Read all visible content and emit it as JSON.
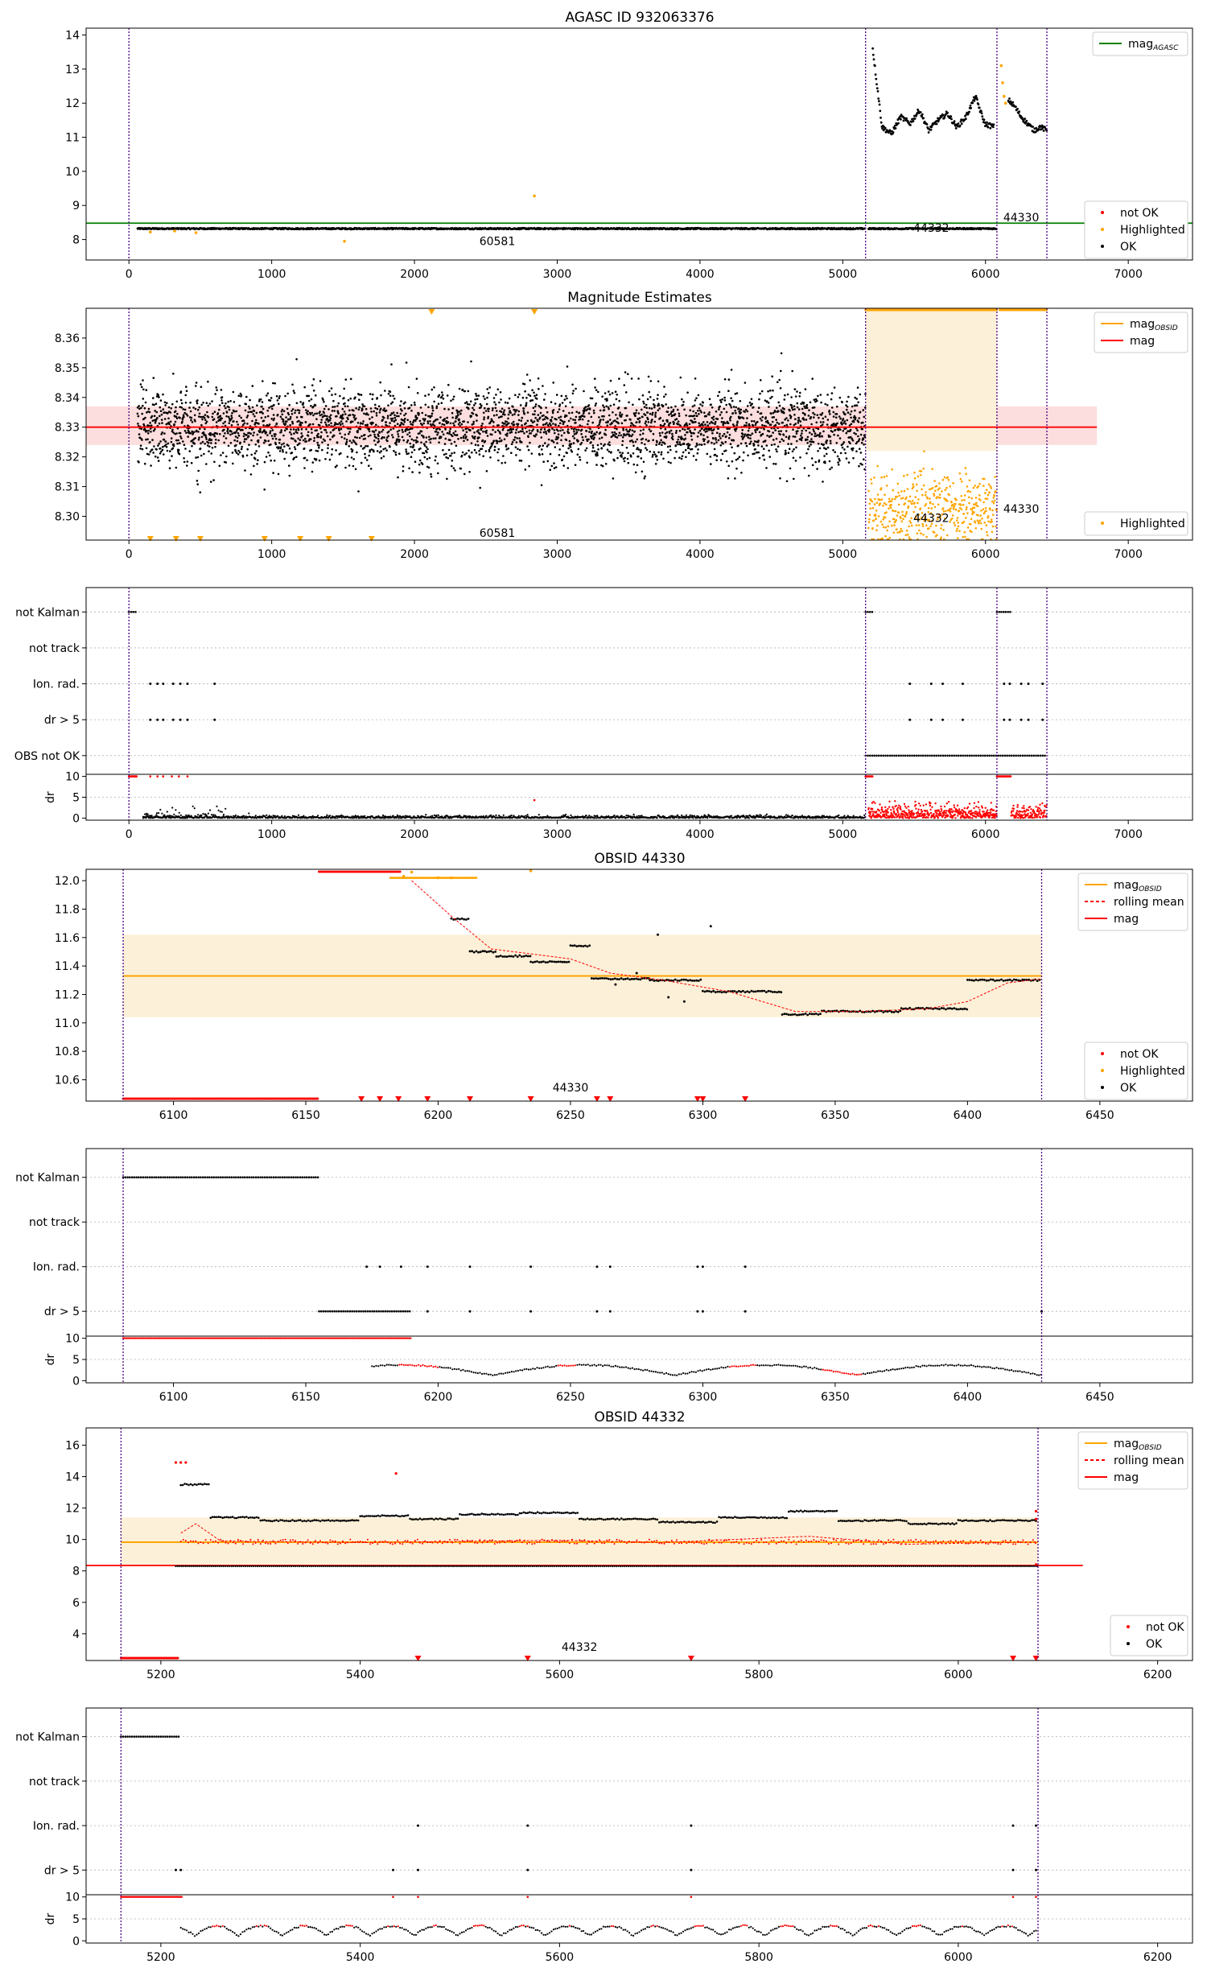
{
  "colors": {
    "ok": "#000000",
    "not_ok": "#ff0000",
    "highlighted": "#ffa500",
    "mag_agasc": "#008000",
    "mag_obsid": "#ffa500",
    "mag": "#ff0000",
    "vline": "#4b0082",
    "grid": "#b0b0b0",
    "band_orange": "#fdf0d8",
    "band_red": "#fbd0d0"
  },
  "chart_data": [
    {
      "type": "scatter",
      "title": "AGASC ID 932063376",
      "xlim": [
        -300,
        7450
      ],
      "ylim": [
        7.4,
        14.2
      ],
      "xticks": [
        0,
        1000,
        2000,
        3000,
        4000,
        5000,
        6000,
        7000
      ],
      "yticks": [
        8,
        9,
        10,
        11,
        12,
        13,
        14
      ],
      "vlines": [
        0,
        5160,
        6080,
        6430
      ],
      "obsid_labels": [
        {
          "text": "60581",
          "x": 2580,
          "y": 7.95
        },
        {
          "text": "44332",
          "x": 5620,
          "y": 8.35
        },
        {
          "text": "44330",
          "x": 6250,
          "y": 8.65
        }
      ],
      "hlines": [
        {
          "name": "mag_AGASC",
          "y": 8.48
        }
      ],
      "legend": {
        "placement": "top-right",
        "entries": [
          "mag_AGASC"
        ]
      },
      "legend2": {
        "placement": "bottom-right",
        "entries": [
          "not OK",
          "Highlighted",
          "OK"
        ]
      },
      "series": [
        {
          "name": "OK",
          "segments": [
            {
              "x": [
                60,
                5160
              ],
              "level": 8.32,
              "noise": 0.04
            },
            {
              "x": [
                5180,
                6080
              ],
              "level": 8.32,
              "noise": 0.04
            },
            {
              "x": [
                5210,
                6060
              ],
              "profile": [
                13.6,
                11.3,
                11.1,
                11.6,
                11.4,
                11.8,
                11.2,
                11.5,
                11.7,
                11.3,
                11.6,
                12.2,
                11.4,
                11.3
              ]
            },
            {
              "x": [
                6160,
                6430
              ],
              "profile": [
                12.1,
                11.9,
                11.6,
                11.4,
                11.2,
                11.3,
                11.2
              ]
            }
          ]
        },
        {
          "name": "Highlighted",
          "points": [
            [
              2840,
              9.28
            ],
            [
              1510,
              7.95
            ],
            [
              6110,
              13.1
            ],
            [
              6120,
              12.6
            ],
            [
              6130,
              12.2
            ],
            [
              6140,
              12.0
            ],
            [
              150,
              8.22
            ],
            [
              320,
              8.25
            ],
            [
              470,
              8.2
            ]
          ]
        }
      ]
    },
    {
      "type": "scatter",
      "title": "Magnitude Estimates",
      "xlim": [
        -300,
        7450
      ],
      "ylim": [
        8.292,
        8.37
      ],
      "xticks": [
        0,
        1000,
        2000,
        3000,
        4000,
        5000,
        6000,
        7000
      ],
      "yticks": [
        8.3,
        8.31,
        8.32,
        8.33,
        8.34,
        8.35,
        8.36
      ],
      "vlines": [
        0,
        5160,
        6080,
        6430
      ],
      "obsid_labels": [
        {
          "text": "60581",
          "x": 2580,
          "y": 8.2945
        },
        {
          "text": "44332",
          "x": 5620,
          "y": 8.2995
        },
        {
          "text": "44330",
          "x": 6250,
          "y": 8.3025
        }
      ],
      "mag": 8.33,
      "mag_band": [
        8.324,
        8.337
      ],
      "mag_obsid_band": {
        "x": [
          5160,
          6080
        ],
        "y": [
          8.322,
          8.37
        ]
      },
      "legend": {
        "placement": "top-right",
        "entries": [
          "mag_OBSID",
          "mag"
        ]
      },
      "legend2": {
        "placement": "bottom-right",
        "entries": [
          "Highlighted"
        ]
      },
      "series": [
        {
          "name": "OK",
          "x_range": [
            60,
            5160
          ],
          "mean": 8.33,
          "sd": 0.0065
        },
        {
          "name": "Highlighted",
          "x_range": [
            5180,
            6080
          ],
          "mean": 8.302,
          "sd": 0.006
        },
        {
          "name": "Highlighted",
          "top_strip": [
            [
              5160,
              6080
            ],
            [
              6100,
              6430
            ]
          ],
          "y": 8.369
        }
      ]
    },
    {
      "type": "scatter",
      "title": "",
      "xlim": [
        -300,
        7450
      ],
      "xticks": [
        0,
        1000,
        2000,
        3000,
        4000,
        5000,
        6000,
        7000
      ],
      "categories": [
        "not Kalman",
        "not track",
        "Ion. rad.",
        "dr > 5",
        "OBS not OK"
      ],
      "vlines": [
        0,
        5160,
        6080,
        6430
      ],
      "flags": {
        "not Kalman": [
          [
            0,
            60
          ],
          [
            5160,
            5210
          ],
          [
            6080,
            6180
          ]
        ],
        "Ion. rad.": [
          150,
          200,
          240,
          310,
          360,
          410,
          600,
          5470,
          5620,
          5700,
          5840,
          6130,
          6170,
          6250,
          6300,
          6400
        ],
        "dr > 5": [
          150,
          200,
          240,
          310,
          360,
          410,
          600,
          5470,
          5620,
          5700,
          5840,
          6130,
          6170,
          6250,
          6300,
          6400
        ],
        "OBS not OK": [
          [
            5160,
            6430
          ]
        ]
      },
      "dr": {
        "ylabel": "dr",
        "yticks": [
          0,
          5,
          10
        ],
        "ylim": [
          -0.5,
          10.5
        ]
      }
    },
    {
      "type": "line",
      "title": "OBSID 44330",
      "obsid": "44330",
      "xlim": [
        6067,
        6485
      ],
      "ylim": [
        10.45,
        12.08
      ],
      "xticks": [
        6100,
        6150,
        6200,
        6250,
        6300,
        6350,
        6400,
        6450
      ],
      "yticks": [
        10.6,
        10.8,
        11.0,
        11.2,
        11.4,
        11.6,
        11.8,
        12.0
      ],
      "vlines": [
        6081,
        6428
      ],
      "mag_obsid": 11.33,
      "mag_obsid_band": [
        11.04,
        11.62
      ],
      "legend": {
        "placement": "top-right",
        "entries": [
          "mag_OBSID",
          "rolling mean",
          "mag"
        ]
      },
      "legend2": {
        "placement": "bottom-right",
        "entries": [
          "not OK",
          "Highlighted",
          "OK"
        ]
      },
      "series": [
        {
          "name": "OK",
          "steps": [
            [
              6205,
              6212,
              11.73
            ],
            [
              6212,
              6222,
              11.5
            ],
            [
              6222,
              6235,
              11.47
            ],
            [
              6235,
              6250,
              11.43
            ],
            [
              6250,
              6258,
              11.54
            ],
            [
              6258,
              6280,
              11.31
            ],
            [
              6280,
              6300,
              11.3
            ],
            [
              6300,
              6330,
              11.22
            ],
            [
              6330,
              6345,
              11.06
            ],
            [
              6345,
              6375,
              11.08
            ],
            [
              6375,
              6400,
              11.1
            ],
            [
              6400,
              6428,
              11.3
            ]
          ]
        },
        {
          "name": "rolling mean",
          "x": [
            6190,
            6205,
            6220,
            6250,
            6265,
            6285,
            6310,
            6335,
            6360,
            6385,
            6400,
            6415,
            6428
          ],
          "y": [
            12.0,
            11.75,
            11.52,
            11.45,
            11.35,
            11.3,
            11.22,
            11.08,
            11.08,
            11.1,
            11.15,
            11.28,
            11.31
          ]
        },
        {
          "name": "Highlighted",
          "points": [
            [
              6187,
              12.03
            ],
            [
              6200,
              12.02
            ],
            [
              6205,
              12.02
            ],
            [
              6190,
              12.06
            ],
            [
              6235,
              12.07
            ]
          ]
        }
      ]
    },
    {
      "type": "scatter",
      "title": "",
      "xlim": [
        6067,
        6485
      ],
      "xticks": [
        6100,
        6150,
        6200,
        6250,
        6300,
        6350,
        6400,
        6450
      ],
      "categories": [
        "not Kalman",
        "not track",
        "Ion. rad.",
        "dr > 5"
      ],
      "vlines": [
        6081,
        6428
      ],
      "flags": {
        "not Kalman": [
          [
            6081,
            6155
          ]
        ],
        "Ion. rad.": [
          6173,
          6178,
          6186,
          6196,
          6212,
          6235,
          6260,
          6265,
          6298,
          6300,
          6316
        ],
        "dr > 5": [
          [
            6155,
            6190
          ],
          6196,
          6212,
          6235,
          6260,
          6265,
          6298,
          6300,
          6316,
          6428
        ]
      },
      "dr": {
        "ylabel": "dr",
        "yticks": [
          0,
          5,
          10
        ],
        "ylim": [
          -0.5,
          10.5
        ]
      }
    },
    {
      "type": "line",
      "title": "OBSID 44332",
      "obsid": "44332",
      "xlim": [
        5125,
        6235
      ],
      "ylim": [
        2.3,
        17.1
      ],
      "xticks": [
        5200,
        5400,
        5600,
        5800,
        6000,
        6200
      ],
      "yticks": [
        4,
        6,
        8,
        10,
        12,
        14,
        16
      ],
      "vlines": [
        5160,
        6080
      ],
      "mag_line": 8.35,
      "mag_line_x": [
        5125,
        6125
      ],
      "mag_obsid": 9.83,
      "mag_obsid_band": [
        8.3,
        11.4
      ],
      "legend": {
        "placement": "top-right",
        "entries": [
          "mag_OBSID",
          "rolling mean",
          "mag"
        ]
      },
      "legend2": {
        "placement": "bottom-right",
        "entries": [
          "not OK",
          "OK"
        ]
      },
      "series": [
        {
          "name": "OK",
          "upper": [
            [
              5220,
              5250,
              13.5
            ],
            [
              5250,
              5300,
              11.4
            ],
            [
              5300,
              5400,
              11.2
            ],
            [
              5400,
              5450,
              11.5
            ],
            [
              5450,
              5500,
              11.3
            ],
            [
              5500,
              5560,
              11.6
            ],
            [
              5560,
              5620,
              11.7
            ],
            [
              5620,
              5700,
              11.3
            ],
            [
              5700,
              5760,
              11.1
            ],
            [
              5760,
              5830,
              11.4
            ],
            [
              5830,
              5880,
              11.8
            ],
            [
              5880,
              5950,
              11.2
            ],
            [
              5950,
              6000,
              11.0
            ],
            [
              6000,
              6080,
              11.2
            ]
          ],
          "lower": 8.3
        },
        {
          "name": "rolling mean",
          "x": [
            5220,
            5235,
            5260,
            5400,
            5600,
            5700,
            5850,
            5950,
            6080
          ],
          "y": [
            10.4,
            11.0,
            9.9,
            9.8,
            9.95,
            9.8,
            10.2,
            9.7,
            9.85
          ]
        },
        {
          "name": "not OK",
          "points": [
            [
              5215,
              14.9
            ],
            [
              5220,
              14.9
            ],
            [
              5225,
              14.9
            ],
            [
              5436,
              14.2
            ]
          ]
        }
      ]
    },
    {
      "type": "scatter",
      "title": "",
      "xlim": [
        5125,
        6235
      ],
      "xticks": [
        5200,
        5400,
        5600,
        5800,
        6000,
        6200
      ],
      "categories": [
        "not Kalman",
        "not track",
        "Ion. rad.",
        "dr > 5"
      ],
      "vlines": [
        5160,
        6080
      ],
      "flags": {
        "not Kalman": [
          [
            5160,
            5218
          ]
        ],
        "Ion. rad.": [
          5458,
          5568,
          5732,
          6055,
          6078
        ],
        "dr > 5": [
          5215,
          5220,
          5433,
          5458,
          5568,
          5732,
          6055,
          6078
        ]
      },
      "dr": {
        "ylabel": "dr",
        "yticks": [
          0,
          5,
          10
        ],
        "ylim": [
          -0.5,
          10.5
        ]
      }
    }
  ],
  "texts": {
    "p1_title": "AGASC ID 932063376",
    "p2_title": "Magnitude Estimates",
    "p4_title": "OBSID 44330",
    "p6_title": "OBSID 44332",
    "leg_mag": "mag",
    "leg_sub_agasc": "AGASC",
    "leg_sub_obsid": "OBSID",
    "leg_not_ok": "not OK",
    "leg_highlighted": "Highlighted",
    "leg_ok": "OK",
    "leg_rolling": "rolling mean",
    "dr_label": "dr"
  }
}
